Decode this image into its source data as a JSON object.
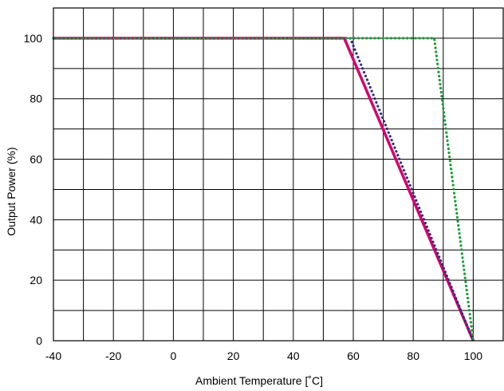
{
  "chart_data": {
    "type": "line",
    "title": "",
    "xlabel": "Ambient Temperature [˚C]",
    "ylabel": "Output Power (%)",
    "xlim": [
      -40,
      110
    ],
    "ylim": [
      0,
      110
    ],
    "x_ticks": [
      -40,
      -20,
      0,
      20,
      40,
      60,
      80,
      100
    ],
    "x_tick_labels": [
      "-40",
      "-20",
      "0",
      "20",
      "40",
      "60",
      "80",
      "100"
    ],
    "y_ticks": [
      0,
      20,
      40,
      60,
      80,
      100
    ],
    "y_tick_labels": [
      "0",
      "20",
      "40",
      "60",
      "80",
      "100"
    ],
    "grid": true,
    "grid_x_step": 10,
    "grid_y_step": 10,
    "series": [
      {
        "color": "#d4006e",
        "style": "solid",
        "x": [
          -40,
          57,
          100
        ],
        "y": [
          100,
          100,
          0
        ]
      },
      {
        "color": "#2b2f7a",
        "style": "dotted",
        "x": [
          -40,
          59,
          100
        ],
        "y": [
          100,
          100,
          0
        ]
      },
      {
        "color": "#1f9a3a",
        "style": "dotted",
        "x": [
          -40,
          87,
          100
        ],
        "y": [
          100,
          100,
          0
        ]
      }
    ]
  }
}
